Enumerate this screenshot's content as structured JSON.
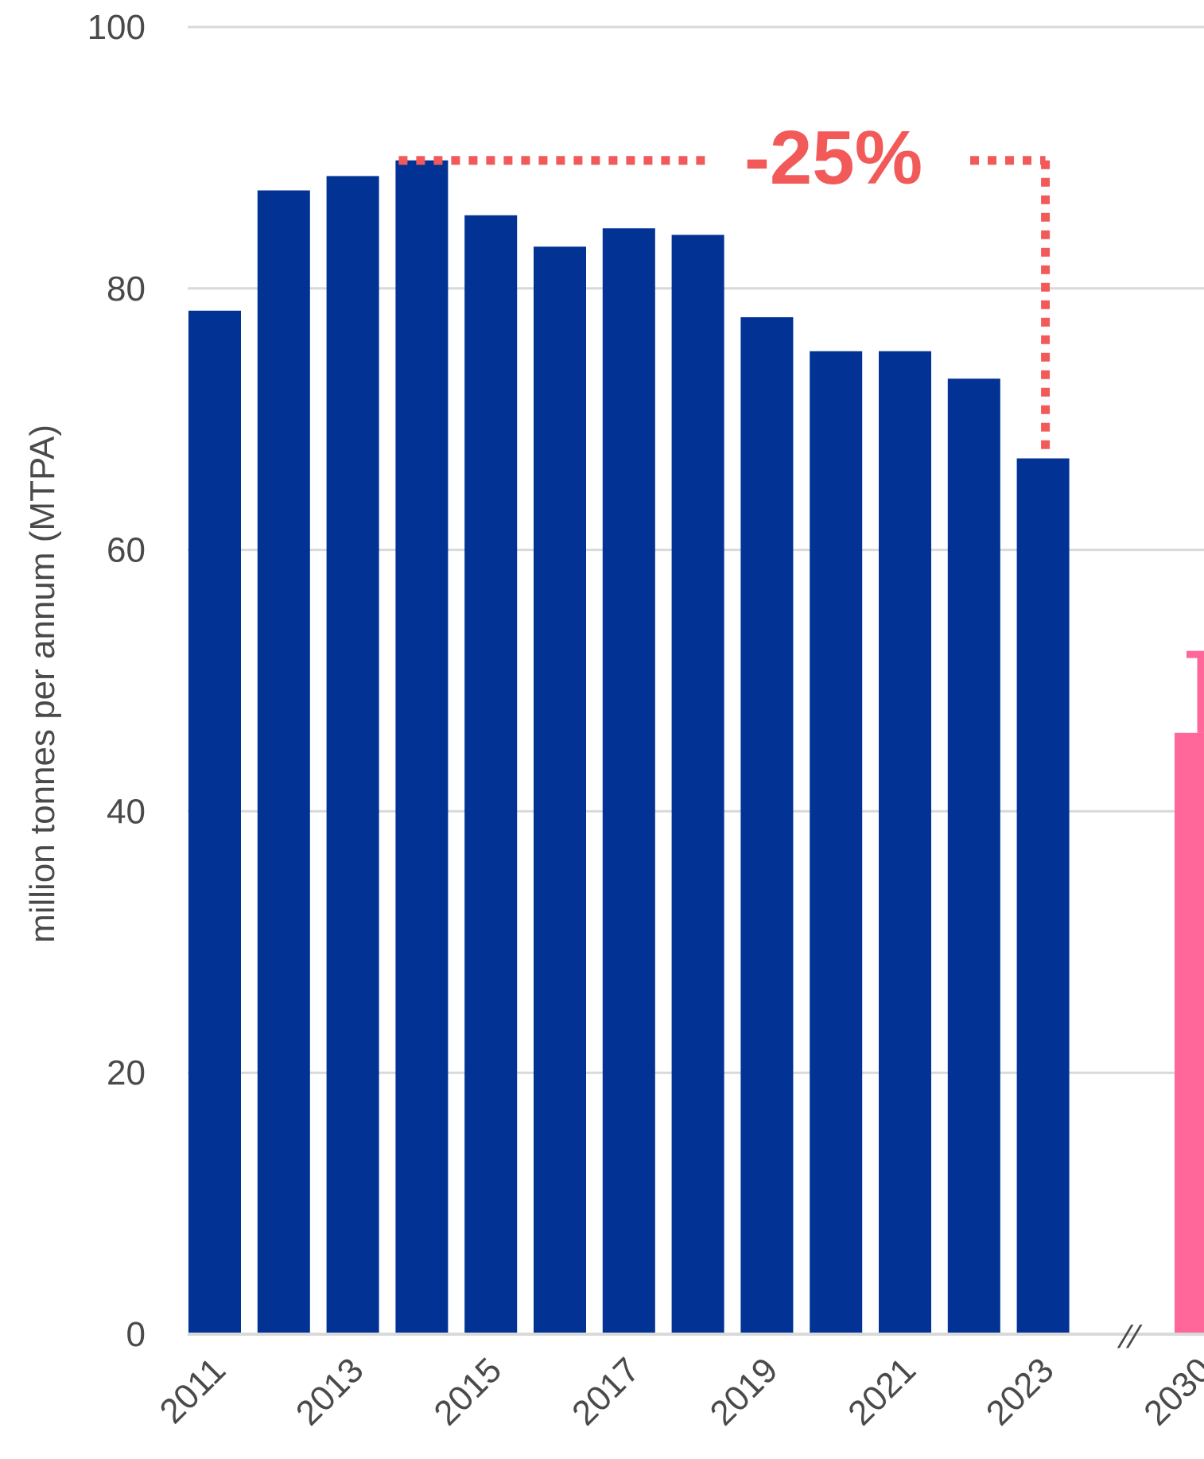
{
  "chart_data": {
    "type": "bar",
    "ylabel": "million tonnes per annum (MTPA)",
    "ylim": [
      0,
      100
    ],
    "yticks": [
      0,
      20,
      40,
      60,
      80,
      100
    ],
    "grid": true,
    "categories": [
      "2011",
      "2012",
      "2013",
      "2014",
      "2015",
      "2016",
      "2017",
      "2018",
      "2019",
      "2020",
      "2021",
      "2022",
      "2023",
      "2030"
    ],
    "xtick_labels": [
      "2011",
      "2013",
      "2015",
      "2017",
      "2019",
      "2021",
      "2023",
      "2030"
    ],
    "values": [
      78.3,
      87.5,
      88.6,
      89.8,
      85.6,
      83.2,
      84.6,
      84.1,
      77.8,
      75.2,
      75.2,
      73.1,
      67.0,
      46.0
    ],
    "target_upper": 52.0,
    "axis_break_symbol": "//",
    "annotation": {
      "text": "-25%",
      "from_category": "2014",
      "to_category": "2023"
    },
    "colors": {
      "historical": "#013294",
      "target": "#FF6699",
      "annotation": "#F25A5A",
      "grid": "#d9d9d9",
      "text": "#4a4a4a"
    }
  }
}
